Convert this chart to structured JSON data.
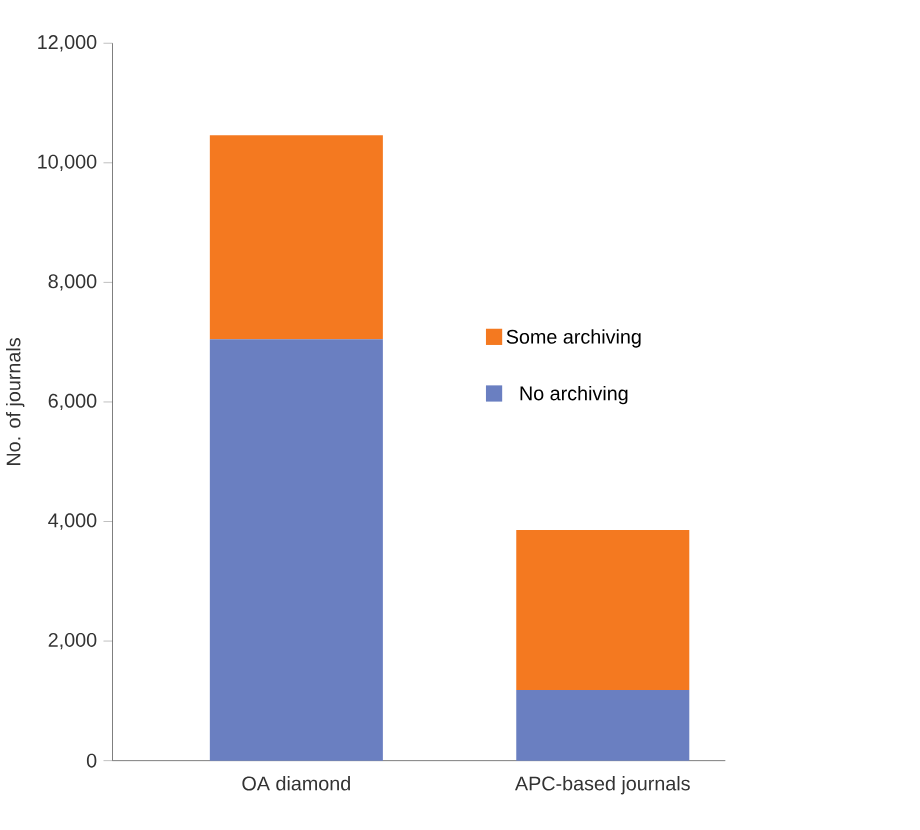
{
  "chart_data": {
    "type": "bar",
    "stacked": true,
    "categories": [
      "OA diamond",
      "APC-based journals"
    ],
    "series": [
      {
        "name": "No archiving",
        "color": "#6a7fc1",
        "values": [
          7050,
          1180
        ]
      },
      {
        "name": "Some archiving",
        "color": "#f47920",
        "values": [
          3410,
          2680
        ]
      }
    ],
    "ylabel": "No. of journals",
    "ylim": [
      0,
      12000
    ],
    "yticks": [
      0,
      {
        "value": 2000,
        "label": "2,000"
      },
      {
        "value": 4000,
        "label": "4,000"
      },
      {
        "value": 6000,
        "label": "6,000"
      },
      {
        "value": 8000,
        "label": "8,000"
      },
      {
        "value": 10000,
        "label": "10,000"
      },
      {
        "value": 12000,
        "label": "12,000"
      }
    ],
    "legend": "right",
    "grid": false
  }
}
